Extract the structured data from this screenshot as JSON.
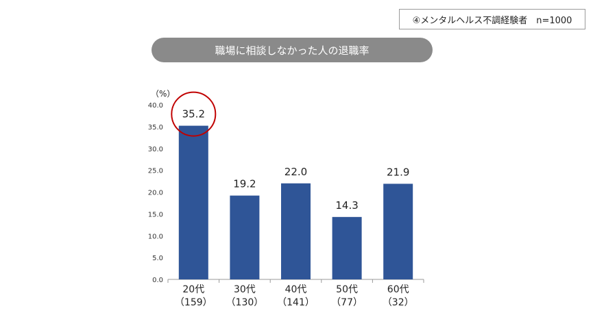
{
  "header": {
    "note": "④メンタルヘルス不調経験者　n=1000",
    "title": "職場に相談しなかった人の退職率"
  },
  "colors": {
    "bar": "#2f5597",
    "highlight": "#c00000",
    "pill": "#8a8a8a"
  },
  "chart_data": {
    "type": "bar",
    "title": "職場に相談しなかった人の退職率",
    "ylabel": "（%）",
    "xlabel": "",
    "ylim": [
      0,
      40
    ],
    "yticks": [
      "0.0",
      "5.0",
      "10.0",
      "15.0",
      "20.0",
      "25.0",
      "30.0",
      "35.0",
      "40.0"
    ],
    "categories": [
      "20代",
      "30代",
      "40代",
      "50代",
      "60代"
    ],
    "sample_sizes": [
      "（159）",
      "（130）",
      "（141）",
      "（77）",
      "（32）"
    ],
    "values": [
      35.2,
      19.2,
      22.0,
      14.3,
      21.9
    ],
    "value_labels": [
      "35.2",
      "19.2",
      "22.0",
      "14.3",
      "21.9"
    ],
    "highlighted_index": 0
  }
}
